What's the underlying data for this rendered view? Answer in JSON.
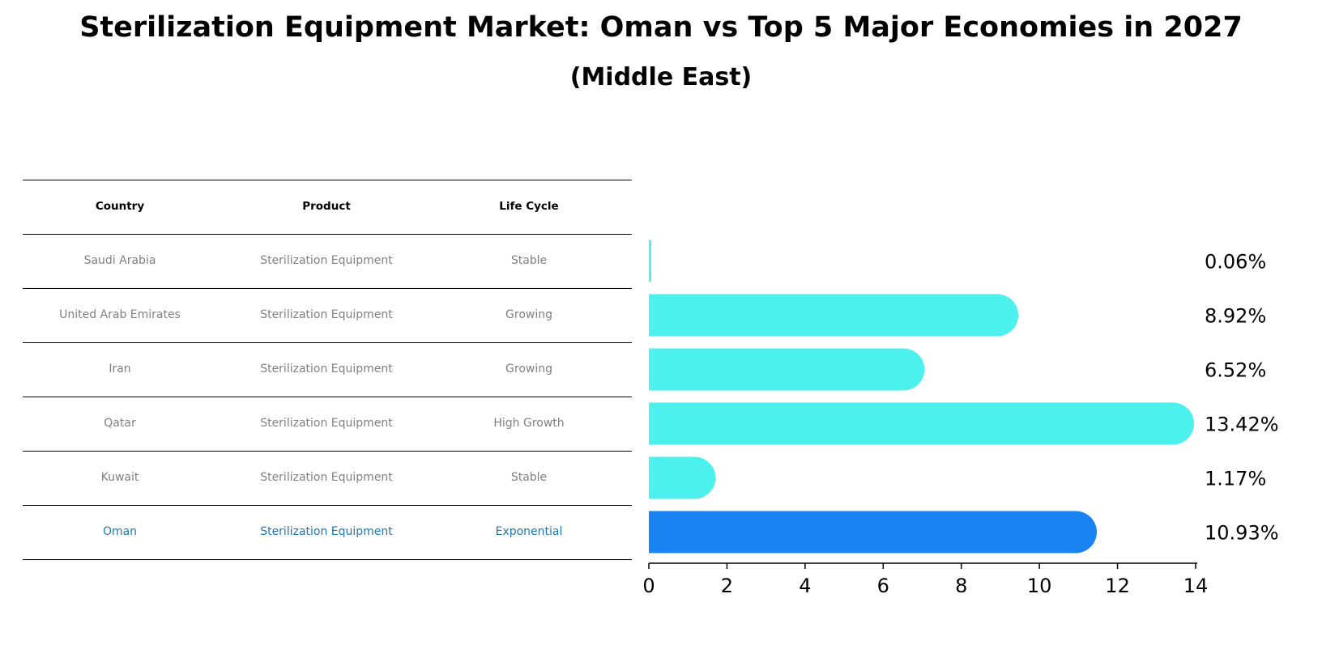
{
  "title": "Sterilization Equipment Market: Oman vs Top 5 Major Economies in 2027",
  "subtitle": "(Middle East)",
  "table": {
    "headers": [
      "Country",
      "Product",
      "Life Cycle"
    ],
    "rows": [
      {
        "country": "Saudi Arabia",
        "product": "Sterilization Equipment",
        "life_cycle": "Stable"
      },
      {
        "country": "United Arab Emirates",
        "product": "Sterilization Equipment",
        "life_cycle": "Growing"
      },
      {
        "country": "Iran",
        "product": "Sterilization Equipment",
        "life_cycle": "Growing"
      },
      {
        "country": "Qatar",
        "product": "Sterilization Equipment",
        "life_cycle": "High Growth"
      },
      {
        "country": "Kuwait",
        "product": "Sterilization Equipment",
        "life_cycle": "Stable"
      },
      {
        "country": "Oman",
        "product": "Sterilization Equipment",
        "life_cycle": "Exponential"
      }
    ]
  },
  "chart_data": {
    "type": "bar",
    "orientation": "horizontal",
    "categories": [
      "Saudi Arabia",
      "United Arab Emirates",
      "Iran",
      "Qatar",
      "Kuwait",
      "Oman"
    ],
    "values": [
      0.06,
      8.92,
      6.52,
      13.42,
      1.17,
      10.93
    ],
    "value_labels": [
      "0.06%",
      "8.92%",
      "6.52%",
      "13.42%",
      "1.17%",
      "10.93%"
    ],
    "xlim": [
      0,
      14
    ],
    "xticks": [
      0,
      2,
      4,
      6,
      8,
      10,
      12,
      14
    ],
    "highlight_category": "Oman",
    "colors": {
      "default": "#4cf0ec",
      "highlight": "#1a85f2",
      "highlight_text": "#1f77b4"
    },
    "grid": false,
    "legend": "none"
  }
}
